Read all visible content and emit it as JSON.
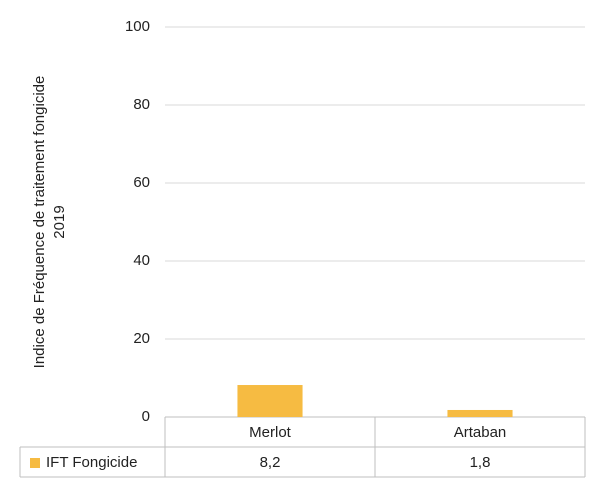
{
  "chart_data": {
    "type": "bar",
    "ylabel": [
      "Indice de Fréquence de traitement fongicide",
      "2019"
    ],
    "categories": [
      "Merlot",
      "Artaban"
    ],
    "series": [
      {
        "name": "IFT Fongicide",
        "color": "#f6bb42",
        "values": [
          8.2,
          1.8
        ],
        "value_labels": [
          "8,2",
          "1,8"
        ]
      }
    ],
    "ylim": [
      0,
      100
    ],
    "yticks": [
      0,
      20,
      40,
      60,
      80,
      100
    ],
    "grid": true
  }
}
